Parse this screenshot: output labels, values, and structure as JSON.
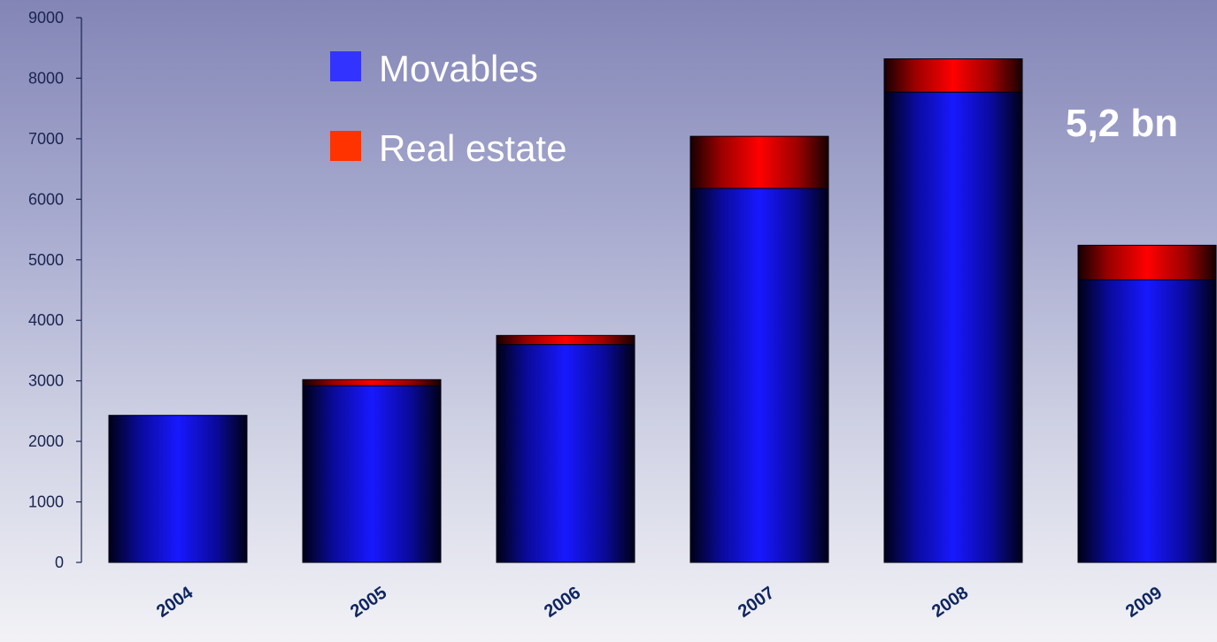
{
  "chart_data": {
    "type": "bar",
    "stacked": true,
    "categories": [
      "2004",
      "2005",
      "2006",
      "2007",
      "2008",
      "2009"
    ],
    "series": [
      {
        "name": "Movables",
        "values": [
          2430,
          2920,
          3600,
          6180,
          7770,
          4670
        ],
        "color": "#1c1cff"
      },
      {
        "name": "Real estate",
        "values": [
          0,
          100,
          150,
          860,
          550,
          570
        ],
        "color": "#ff0000"
      }
    ],
    "ylim": [
      0,
      9000
    ],
    "yticks": [
      0,
      1000,
      2000,
      3000,
      4000,
      5000,
      6000,
      7000,
      8000,
      9000
    ],
    "legend_position": "top-center",
    "legend": [
      {
        "label": "Movables",
        "color": "#3333ff"
      },
      {
        "label": "Real estate",
        "color": "#ff3300"
      }
    ],
    "annotation": "5,2 bn",
    "grid": false
  }
}
